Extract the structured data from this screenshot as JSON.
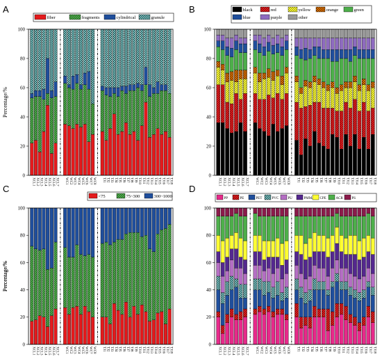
{
  "chart_data": [
    {
      "panel": "A",
      "type": "bar",
      "stacked": true,
      "ylabel": "Percentage/%",
      "ylim": [
        0,
        100
      ],
      "yticks": [
        0,
        20,
        40,
        60,
        80,
        100
      ],
      "legend_position": "top",
      "groups": [
        [
          "XCL1",
          "XCL2",
          "XCL3",
          "XCL4",
          "XCL5",
          "XCL6",
          "XCL7"
        ],
        [
          "WC1",
          "WC2",
          "WC3",
          "WC4",
          "WC5",
          "WC6",
          "WC7",
          "WC8"
        ],
        [
          "TJ1",
          "TJ2",
          "TJ3",
          "TJ4",
          "TJ5",
          "TJ6",
          "TJ7",
          "TJ8",
          "TJ9",
          "TJ10",
          "TJ11",
          "TJ12",
          "TJ13",
          "TJ14",
          "TJ15",
          "TJ16",
          "TJ17",
          "TJ18"
        ]
      ],
      "series": [
        {
          "name": "fiber",
          "color": "#e41a1c",
          "pattern": "solid",
          "values": [
            22,
            24,
            16,
            30,
            48,
            15,
            22,
            35,
            34,
            32,
            35,
            33,
            35,
            23,
            28,
            30,
            24,
            32,
            42,
            28,
            30,
            36,
            28,
            30,
            24,
            34,
            50,
            26,
            28,
            32,
            28,
            30,
            26
          ]
        },
        {
          "name": "fragments",
          "color": "#4daf4a",
          "pattern": "diag",
          "values": [
            31,
            30,
            38,
            22,
            8,
            38,
            32,
            28,
            26,
            27,
            28,
            26,
            27,
            36,
            21,
            28,
            31,
            22,
            14,
            26,
            28,
            20,
            30,
            28,
            36,
            24,
            12,
            28,
            28,
            24,
            30,
            28,
            30
          ]
        },
        {
          "name": "cylindrical",
          "color": "#1f4e9c",
          "pattern": "solid",
          "values": [
            3,
            4,
            4,
            7,
            24,
            5,
            10,
            5,
            2,
            9,
            6,
            3,
            8,
            12,
            0,
            3,
            5,
            6,
            4,
            6,
            3,
            5,
            4,
            4,
            3,
            4,
            12,
            8,
            4,
            8,
            4,
            4,
            0
          ]
        },
        {
          "name": "granule",
          "color": "#7fd3d3",
          "pattern": "cross",
          "values": [
            44,
            42,
            42,
            41,
            20,
            42,
            36,
            32,
            38,
            32,
            31,
            38,
            30,
            29,
            51,
            39,
            40,
            40,
            40,
            40,
            39,
            39,
            38,
            38,
            37,
            38,
            26,
            38,
            40,
            36,
            38,
            38,
            44
          ]
        }
      ]
    },
    {
      "panel": "B",
      "type": "bar",
      "stacked": true,
      "ylim": [
        0,
        100
      ],
      "yticks": [
        0,
        20,
        40,
        60,
        80,
        100
      ],
      "legend_position": "top",
      "groups": [
        [
          "XCL1",
          "XCL2",
          "XCL3",
          "XCL4",
          "XCL5",
          "XCL6",
          "XCL7"
        ],
        [
          "WC1",
          "WC2",
          "WC3",
          "WC4",
          "WC5",
          "WC6",
          "WC7",
          "WC8"
        ],
        [
          "TJ1",
          "TJ2",
          "TJ3",
          "TJ4",
          "TJ5",
          "TJ6",
          "TJ7",
          "TJ8",
          "TJ9",
          "TJ10",
          "TJ11",
          "TJ12",
          "TJ13",
          "TJ14",
          "TJ15",
          "TJ16",
          "TJ17",
          "TJ18"
        ]
      ],
      "series": [
        {
          "name": "black",
          "color": "#000000",
          "pattern": "solid",
          "values": [
            36,
            36,
            32,
            29,
            30,
            36,
            30,
            36,
            32,
            30,
            27,
            35,
            30,
            32,
            34,
            24,
            14,
            25,
            20,
            30,
            22,
            20,
            18,
            28,
            26,
            18,
            28,
            20,
            28,
            18,
            26,
            18,
            28
          ]
        },
        {
          "name": "red",
          "color": "#e41a1c",
          "pattern": "diag",
          "values": [
            26,
            26,
            18,
            20,
            26,
            16,
            26,
            20,
            20,
            22,
            28,
            18,
            26,
            20,
            22,
            26,
            32,
            22,
            28,
            20,
            28,
            26,
            28,
            18,
            18,
            26,
            22,
            26,
            24,
            26,
            24,
            26,
            18
          ]
        },
        {
          "name": "yellow",
          "color": "#ffff33",
          "pattern": "diag",
          "values": [
            12,
            10,
            14,
            16,
            8,
            14,
            10,
            14,
            12,
            14,
            12,
            12,
            12,
            10,
            14,
            14,
            10,
            14,
            12,
            14,
            12,
            14,
            12,
            14,
            12,
            14,
            10,
            14,
            12,
            14,
            12,
            14,
            14
          ]
        },
        {
          "name": "orange",
          "color": "#ff7f00",
          "pattern": "cross",
          "values": [
            4,
            4,
            6,
            6,
            8,
            6,
            6,
            4,
            6,
            4,
            6,
            6,
            4,
            6,
            4,
            4,
            4,
            4,
            4,
            4,
            4,
            4,
            4,
            4,
            4,
            4,
            4,
            4,
            4,
            4,
            4,
            4,
            4
          ]
        },
        {
          "name": "green",
          "color": "#4daf4a",
          "pattern": "solid",
          "values": [
            10,
            10,
            12,
            10,
            14,
            12,
            12,
            12,
            14,
            12,
            12,
            12,
            12,
            14,
            12,
            14,
            20,
            14,
            16,
            14,
            14,
            16,
            18,
            14,
            18,
            18,
            16,
            14,
            14,
            18,
            14,
            18,
            16
          ]
        },
        {
          "name": "blue",
          "color": "#1f4e9c",
          "pattern": "solid",
          "values": [
            4,
            6,
            6,
            6,
            6,
            6,
            6,
            6,
            6,
            6,
            6,
            6,
            6,
            6,
            6,
            6,
            6,
            8,
            6,
            6,
            8,
            6,
            6,
            8,
            8,
            6,
            6,
            8,
            6,
            6,
            6,
            6,
            6
          ]
        },
        {
          "name": "purple",
          "color": "#8e6bbf",
          "pattern": "solid",
          "values": [
            4,
            4,
            6,
            7,
            4,
            4,
            4,
            4,
            6,
            6,
            5,
            5,
            6,
            6,
            4,
            6,
            8,
            7,
            8,
            6,
            6,
            8,
            8,
            8,
            8,
            8,
            8,
            8,
            6,
            8,
            8,
            8,
            8
          ]
        },
        {
          "name": "other",
          "color": "#999999",
          "pattern": "solid",
          "values": [
            4,
            4,
            6,
            6,
            4,
            6,
            6,
            4,
            4,
            6,
            4,
            6,
            4,
            6,
            4,
            6,
            6,
            6,
            6,
            6,
            6,
            6,
            6,
            6,
            6,
            6,
            6,
            6,
            6,
            6,
            6,
            6,
            6
          ]
        }
      ]
    },
    {
      "panel": "C",
      "type": "bar",
      "stacked": true,
      "ylabel": "Percentage/%",
      "ylim": [
        0,
        100
      ],
      "yticks": [
        0,
        20,
        40,
        60,
        80,
        100
      ],
      "legend_position": "top",
      "groups": [
        [
          "XCL1",
          "XCL2",
          "XCL3",
          "XCL4",
          "XCL5",
          "XCL6",
          "XCL7"
        ],
        [
          "WC1",
          "WC2",
          "WC3",
          "WC4",
          "WC5",
          "WC6",
          "WC7",
          "WC8"
        ],
        [
          "TJ1",
          "TJ2",
          "TJ3",
          "TJ4",
          "TJ5",
          "TJ6",
          "TJ7",
          "TJ8",
          "TJ9",
          "TJ10",
          "TJ11",
          "TJ12",
          "TJ13",
          "TJ14",
          "TJ15",
          "TJ16",
          "TJ17",
          "TJ18"
        ]
      ],
      "series": [
        {
          "name": "<75",
          "color": "#e41a1c",
          "pattern": "solid",
          "values": [
            17,
            18,
            21,
            20,
            13,
            21,
            26,
            27,
            22,
            27,
            28,
            22,
            28,
            24,
            20,
            20,
            20,
            15,
            30,
            25,
            22,
            31,
            20,
            28,
            22,
            29,
            24,
            17,
            18,
            23,
            24,
            15,
            26
          ]
        },
        {
          "name": "75~300",
          "color": "#4daf4a",
          "pattern": "diag",
          "values": [
            55,
            52,
            48,
            50,
            42,
            35,
            49,
            44,
            42,
            37,
            45,
            44,
            37,
            42,
            44,
            54,
            55,
            58,
            45,
            52,
            55,
            50,
            62,
            54,
            60,
            50,
            56,
            53,
            50,
            58,
            60,
            70,
            62
          ]
        },
        {
          "name": "300~1000",
          "color": "#1f4e9c",
          "pattern": "solid",
          "values": [
            28,
            30,
            31,
            30,
            45,
            44,
            25,
            29,
            36,
            36,
            27,
            34,
            35,
            34,
            36,
            26,
            25,
            27,
            25,
            23,
            23,
            19,
            18,
            18,
            18,
            21,
            20,
            30,
            32,
            19,
            16,
            15,
            12
          ]
        }
      ]
    },
    {
      "panel": "D",
      "type": "bar",
      "stacked": true,
      "ylabel": "Percentage/%",
      "ylim": [
        0,
        100
      ],
      "yticks": [
        0,
        20,
        40,
        60,
        80,
        100
      ],
      "legend_position": "top",
      "groups": [
        [
          "XCL1",
          "XCL2",
          "XCL3",
          "XCL4",
          "XCL5",
          "XCL6",
          "XCL7"
        ],
        [
          "WC1",
          "WC2",
          "WC3",
          "WC4",
          "WC5",
          "WC6",
          "WC7",
          "WC8"
        ],
        [
          "TJ1",
          "TJ2",
          "TJ3",
          "TJ4",
          "TJ5",
          "TJ6",
          "TJ7",
          "TJ8",
          "TJ9",
          "TJ10",
          "TJ11",
          "TJ12",
          "TJ13",
          "TJ14",
          "TJ15",
          "TJ16",
          "TJ17",
          "TJ18"
        ]
      ],
      "series": [
        {
          "name": "PP",
          "color": "#e7298a",
          "pattern": "solid",
          "values": [
            20,
            8,
            16,
            20,
            18,
            18,
            20,
            22,
            24,
            22,
            24,
            20,
            22,
            22,
            18,
            20,
            12,
            14,
            12,
            20,
            20,
            20,
            10,
            14,
            20,
            22,
            18,
            16,
            14,
            10,
            14,
            20,
            16
          ]
        },
        {
          "name": "PE",
          "color": "#e41a1c",
          "pattern": "diag",
          "values": [
            4,
            6,
            6,
            6,
            4,
            6,
            6,
            4,
            4,
            4,
            4,
            4,
            4,
            4,
            4,
            10,
            8,
            6,
            8,
            8,
            6,
            6,
            16,
            10,
            10,
            8,
            10,
            6,
            6,
            6,
            6,
            8,
            8
          ]
        },
        {
          "name": "PET",
          "color": "#1f4e9c",
          "pattern": "solid",
          "values": [
            16,
            16,
            14,
            14,
            20,
            10,
            8,
            14,
            12,
            10,
            10,
            10,
            10,
            6,
            12,
            10,
            14,
            10,
            12,
            12,
            14,
            14,
            10,
            18,
            16,
            10,
            12,
            14,
            14,
            16,
            14,
            14,
            12
          ]
        },
        {
          "name": "PVC",
          "color": "#7fd3d3",
          "pattern": "cross",
          "values": [
            10,
            8,
            10,
            10,
            6,
            10,
            10,
            8,
            8,
            10,
            8,
            8,
            10,
            6,
            8,
            8,
            8,
            8,
            8,
            8,
            6,
            6,
            4,
            4,
            6,
            6,
            6,
            6,
            6,
            6,
            6,
            4,
            6
          ]
        },
        {
          "name": "PU",
          "color": "#b46ec3",
          "pattern": "solid",
          "values": [
            10,
            12,
            8,
            12,
            8,
            12,
            8,
            10,
            10,
            8,
            10,
            10,
            10,
            10,
            10,
            10,
            10,
            10,
            10,
            10,
            10,
            10,
            10,
            10,
            10,
            10,
            10,
            10,
            10,
            10,
            10,
            10,
            10
          ]
        },
        {
          "name": "PMMA",
          "color": "#54278f",
          "pattern": "solid",
          "values": [
            8,
            10,
            10,
            8,
            14,
            8,
            10,
            10,
            10,
            8,
            8,
            12,
            8,
            10,
            10,
            10,
            14,
            14,
            14,
            10,
            12,
            12,
            14,
            12,
            12,
            12,
            10,
            14,
            16,
            14,
            14,
            12,
            14
          ]
        },
        {
          "name": "CPE",
          "color": "#ffff33",
          "pattern": "solid",
          "values": [
            12,
            16,
            14,
            10,
            12,
            14,
            14,
            12,
            12,
            14,
            12,
            12,
            14,
            16,
            14,
            12,
            14,
            12,
            14,
            14,
            12,
            12,
            14,
            12,
            12,
            12,
            12,
            14,
            14,
            14,
            14,
            12,
            12
          ]
        },
        {
          "name": "ACR",
          "color": "#4daf4a",
          "pattern": "solid",
          "values": [
            14,
            18,
            16,
            14,
            14,
            16,
            18,
            16,
            14,
            18,
            18,
            18,
            16,
            20,
            18,
            14,
            14,
            20,
            16,
            12,
            14,
            14,
            16,
            14,
            10,
            14,
            16,
            14,
            14,
            18,
            16,
            16,
            16
          ]
        },
        {
          "name": "PS",
          "color": "#8b1a4a",
          "pattern": "solid",
          "values": [
            6,
            6,
            6,
            6,
            4,
            6,
            6,
            4,
            6,
            6,
            6,
            6,
            6,
            6,
            6,
            6,
            6,
            6,
            6,
            6,
            6,
            6,
            6,
            6,
            4,
            6,
            6,
            6,
            6,
            6,
            6,
            4,
            6
          ]
        }
      ]
    }
  ]
}
